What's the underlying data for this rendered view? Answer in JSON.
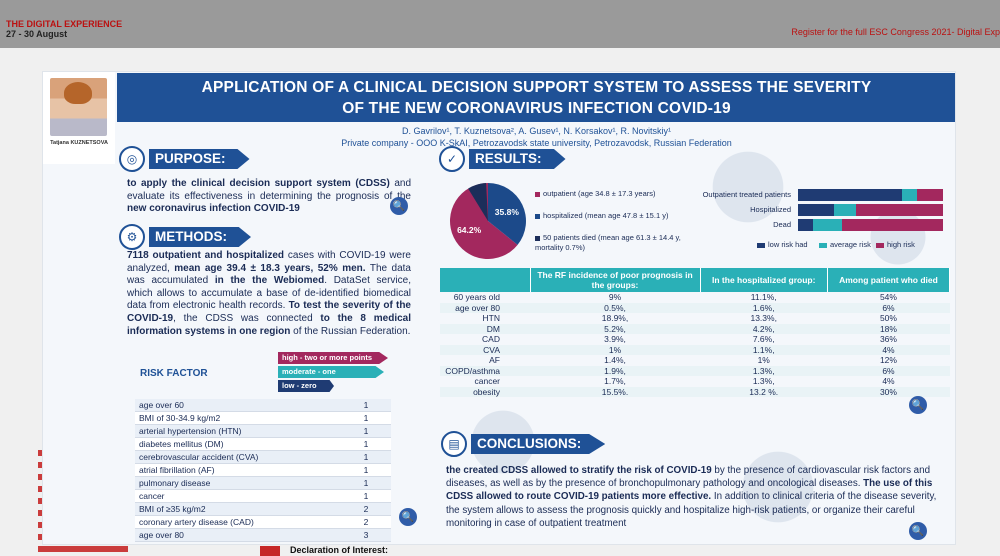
{
  "topbar": {
    "brand": "THE DIGITAL EXPERIENCE",
    "dates": "27 - 30 August",
    "register_link": "Register for the full ESC Congress 2021- Digital Exp"
  },
  "author": {
    "name": "Tatjana KUZNETSOVA"
  },
  "poster": {
    "title_line1": "APPLICATION OF A CLINICAL DECISION SUPPORT SYSTEM TO ASSESS THE SEVERITY",
    "title_line2": "OF THE NEW CORONAVIRUS INFECTION COVID-19",
    "authors_line": "D. Gavrilov¹, T. Kuznetsova², A. Gusev¹, N. Korsakov¹, R. Novitskiy¹",
    "affiliation_line": "Private company - OOO K-SkAI, Petrozavodsk state university, Petrozavodsk, Russian Federation",
    "purpose": {
      "heading": "PURPOSE:",
      "text_bold1": "to apply the clinical decision support system (CDSS)",
      "text_mid": " and evaluate its effectiveness in determining the prognosis of the ",
      "text_bold2": "new coronavirus infection COVID-19"
    },
    "methods": {
      "heading": "METHODS:",
      "p1_bold": "7118 outpatient and hospitalized",
      "p1_a": " cases with COVID-19 were analyzed, ",
      "p1_bold2": "mean age 39.4 ± 18.3 years, 52% men.",
      "p1_b": " The data was accumulated ",
      "p1_bold3": "in the the Webiomed",
      "p1_c": ". DataSet service, which allows to accumulate a base of de-identified biomedical data from electronic health records. ",
      "p1_bold4": "To test the severity of the COVID-19",
      "p1_d": ", the CDSS was connected ",
      "p1_bold5": "to the 8 medical information systems in one region",
      "p1_e": " of the Russian Federation."
    },
    "risk_legend": {
      "high": "high - two or more points",
      "moderate": "moderate - one",
      "low": "low - zero"
    },
    "risk_factor_title": "RISK FACTOR",
    "risk_rows": [
      {
        "factor": "age over 60",
        "points": "1"
      },
      {
        "factor": "BMI of 30-34.9 kg/m2",
        "points": "1"
      },
      {
        "factor": "arterial hypertension (HTN)",
        "points": "1"
      },
      {
        "factor": "diabetes mellitus (DM)",
        "points": "1"
      },
      {
        "factor": "cerebrovascular accident (CVA)",
        "points": "1"
      },
      {
        "factor": "atrial fibrillation (AF)",
        "points": "1"
      },
      {
        "factor": "pulmonary disease",
        "points": "1"
      },
      {
        "factor": "cancer",
        "points": "1"
      },
      {
        "factor": "BMI of ≥35 kg/m2",
        "points": "2"
      },
      {
        "factor": "coronary artery disease (CAD)",
        "points": "2"
      },
      {
        "factor": "age over 80",
        "points": "3"
      }
    ],
    "results": {
      "heading": "RESULTS:",
      "pie_legend": {
        "outpatient": "outpatient  (age 34.8 ± 17.3 years)",
        "hospitalized": "hospitalized (mean age 47.8 ± 15.1 y)",
        "died": "50 patients died (mean age 61.3 ± 14.4 y, mortality 0.7%)"
      },
      "bar_legend": {
        "low": "low risk had",
        "average": "average risk",
        "high": "high risk"
      },
      "table_headers": [
        "",
        "The RF incidence of poor prognosis in the groups:",
        "In the hospitalized group:",
        "Among patient who died"
      ],
      "table_rows": [
        [
          "60 years old",
          "9%",
          "11.1%,",
          "54%"
        ],
        [
          "age over 80",
          "0.5%,",
          "1.6%,",
          "6%"
        ],
        [
          "HTN",
          "18.9%,",
          "13.3%,",
          "50%"
        ],
        [
          "DM",
          "5.2%,",
          "4.2%,",
          "18%"
        ],
        [
          "CAD",
          "3.9%,",
          "7.6%,",
          "36%"
        ],
        [
          "CVA",
          "1%",
          "1.1%,",
          "4%"
        ],
        [
          "AF",
          "1.4%,",
          "1%",
          "12%"
        ],
        [
          "COPD/asthma",
          "1.9%,",
          "1.3%,",
          "6%"
        ],
        [
          "cancer",
          "1.7%,",
          "1.3%,",
          "4%"
        ],
        [
          "obesity",
          "15.5%.",
          "13.2 %.",
          "30%"
        ]
      ]
    },
    "conclusions": {
      "heading": "CONCLUSIONS:",
      "bold1": "the created CDSS allowed to stratify the risk of COVID-19",
      "t1": " by the presence of cardiovascular risk factors and diseases, as well as by the presence of bronchopulmonary pathology and oncological diseases. ",
      "bold2": "The use of this CDSS allowed to route COVID-19 patients more effective.",
      "t2": " In addition to clinical criteria of the disease severity, the system allows to assess the prognosis quickly and hospitalize high-risk patients, or organize their careful monitoring in case of outpatient treatment"
    }
  },
  "footer": {
    "declaration": "Declaration of Interest:"
  },
  "colors": {
    "navy": "#1f5196",
    "teal": "#2ab0b7",
    "magenta": "#a3285e",
    "dark_navy": "#1c2e5a"
  },
  "chart_data": [
    {
      "type": "pie",
      "categories": [
        "outpatient",
        "hospitalized"
      ],
      "values": [
        64.2,
        35.8
      ],
      "data_labels": [
        "64.2%",
        "35.8%"
      ],
      "colors": [
        "#a3285e",
        "#1c4a8a"
      ]
    },
    {
      "type": "bar",
      "orientation": "horizontal",
      "stacked": true,
      "categories": [
        "Outpatient treated patients",
        "Hospitalized",
        "Dead"
      ],
      "series": [
        {
          "name": "low risk had",
          "values": [
            72,
            25,
            10
          ]
        },
        {
          "name": "average risk",
          "values": [
            10,
            15,
            20
          ]
        },
        {
          "name": "high risk",
          "values": [
            18,
            60,
            70
          ]
        }
      ],
      "colors": [
        "#1f3b73",
        "#2ab0b7",
        "#a3285e"
      ]
    }
  ]
}
